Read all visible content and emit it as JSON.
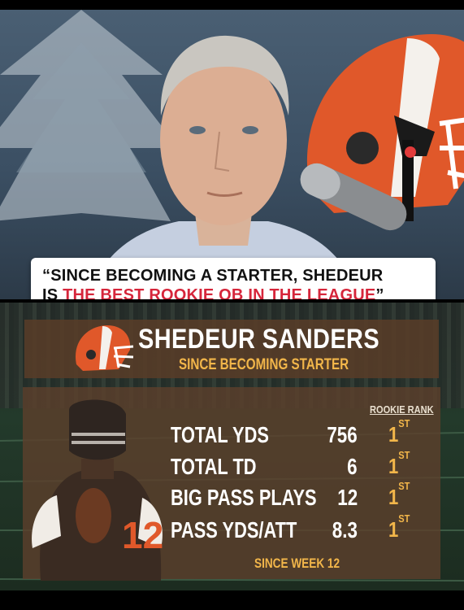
{
  "quote": {
    "line1": "“SINCE BECOMING A STARTER, SHEDEUR",
    "line2_prefix": "IS ",
    "line2_highlight": "THE BEST ROOKIE QB IN THE LEAGUE",
    "line2_suffix": "”"
  },
  "graphic": {
    "player_name": "SHEDEUR SANDERS",
    "subtitle": "SINCE BECOMING STARTER",
    "rank_header": "ROOKIE RANK",
    "footnote": "SINCE WEEK 12",
    "stats": [
      {
        "label": "TOTAL YDS",
        "value": "756",
        "rank": "1",
        "rank_suffix": "ST"
      },
      {
        "label": "TOTAL TD",
        "value": "6",
        "rank": "1",
        "rank_suffix": "ST"
      },
      {
        "label": "BIG PASS PLAYS",
        "value": "12",
        "rank": "1",
        "rank_suffix": "ST"
      },
      {
        "label": "PASS YDS/ATT",
        "value": "8.3",
        "rank": "1",
        "rank_suffix": "ST"
      }
    ],
    "jersey_number": "12"
  },
  "colors": {
    "accent_red": "#d6263b",
    "accent_gold": "#f2b64a",
    "browns_orange": "#e0582a",
    "panel_brown": "#5c402c"
  },
  "icons": {
    "logo": "browns-helmet-logo-icon",
    "microphone": "microphone-icon"
  }
}
